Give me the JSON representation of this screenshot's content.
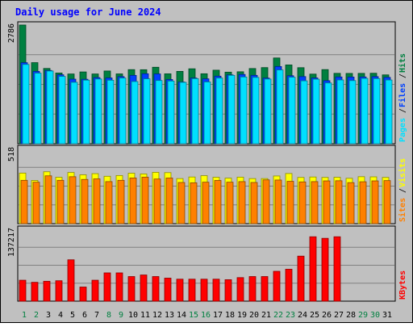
{
  "title": "Daily usage for June 2024",
  "colors": {
    "background": "#C0C0C0",
    "title": "#0000FF",
    "hits": "#008040",
    "files": "#0040FF",
    "pages": "#00E0FF",
    "visits": "#FFFF00",
    "sites": "#FF8000",
    "kbytes": "#FF0000",
    "weekend_label": "#008040",
    "weekday_label": "#000000"
  },
  "chart_data": [
    {
      "type": "bar",
      "name": "hits-files-pages",
      "categories": [
        "1",
        "2",
        "3",
        "4",
        "5",
        "6",
        "7",
        "8",
        "9",
        "10",
        "11",
        "12",
        "13",
        "14",
        "15",
        "16",
        "17",
        "18",
        "19",
        "20",
        "21",
        "22",
        "23",
        "24",
        "25",
        "26",
        "27",
        "28",
        "29",
        "30",
        "31"
      ],
      "y_max_label": "2786",
      "ylim": [
        0,
        2786
      ],
      "legend": [
        {
          "label": "Pages",
          "color": "#00E0FF"
        },
        {
          "label": "Files",
          "color": "#0040FF"
        },
        {
          "label": "Hits",
          "color": "#008040"
        }
      ],
      "series": [
        {
          "name": "Hits",
          "values": [
            2786,
            1903,
            1767,
            1660,
            1637,
            1685,
            1637,
            1707,
            1639,
            1739,
            1737,
            1795,
            1641,
            1698,
            1759,
            1642,
            1726,
            1680,
            1689,
            1765,
            1787,
            2013,
            1849,
            1785,
            1634,
            1740,
            1652,
            1650,
            1651,
            1654,
            1616
          ]
        },
        {
          "name": "Files",
          "values": [
            1902,
            1697,
            1720,
            1619,
            1516,
            1513,
            1552,
            1544,
            1575,
            1604,
            1642,
            1638,
            1508,
            1449,
            1542,
            1523,
            1586,
            1616,
            1626,
            1605,
            1541,
            1812,
            1596,
            1576,
            1544,
            1479,
            1567,
            1565,
            1567,
            1575,
            1557
          ]
        },
        {
          "name": "Pages",
          "values": [
            1861,
            1657,
            1707,
            1580,
            1442,
            1492,
            1519,
            1490,
            1542,
            1460,
            1524,
            1484,
            1471,
            1441,
            1528,
            1450,
            1542,
            1605,
            1566,
            1557,
            1518,
            1732,
            1561,
            1476,
            1514,
            1426,
            1497,
            1482,
            1533,
            1529,
            1496
          ]
        }
      ]
    },
    {
      "type": "bar",
      "name": "visits-sites",
      "y_max_label": "518",
      "ylim": [
        0,
        518
      ],
      "legend": [
        {
          "label": "Sites",
          "color": "#FF8000"
        },
        {
          "label": "Visits",
          "color": "#FFFF00"
        }
      ],
      "series": [
        {
          "name": "Visits",
          "values": [
            349,
            298,
            358,
            320,
            353,
            337,
            345,
            327,
            332,
            348,
            343,
            354,
            352,
            311,
            322,
            331,
            320,
            314,
            321,
            311,
            311,
            329,
            346,
            319,
            322,
            319,
            320,
            313,
            324,
            323,
            319
          ]
        },
        {
          "name": "Sites",
          "values": [
            299,
            286,
            330,
            299,
            324,
            305,
            309,
            290,
            299,
            315,
            321,
            308,
            315,
            284,
            282,
            286,
            298,
            286,
            290,
            284,
            302,
            301,
            292,
            288,
            290,
            295,
            296,
            283,
            289,
            295,
            297
          ]
        }
      ]
    },
    {
      "type": "bar",
      "name": "kbytes",
      "y_max_label": "137217",
      "ylim": [
        0,
        137217
      ],
      "legend": [
        {
          "label": "KBytes",
          "color": "#FF0000"
        }
      ],
      "series": [
        {
          "name": "KBytes",
          "values": [
            40000,
            36000,
            38000,
            39000,
            79000,
            27000,
            40000,
            54000,
            54000,
            47000,
            50000,
            47000,
            44000,
            42000,
            42000,
            42000,
            42000,
            41000,
            45000,
            47000,
            47000,
            57000,
            61000,
            86000,
            123000,
            120000,
            123000,
            0,
            0,
            0,
            0
          ]
        }
      ]
    }
  ]
}
